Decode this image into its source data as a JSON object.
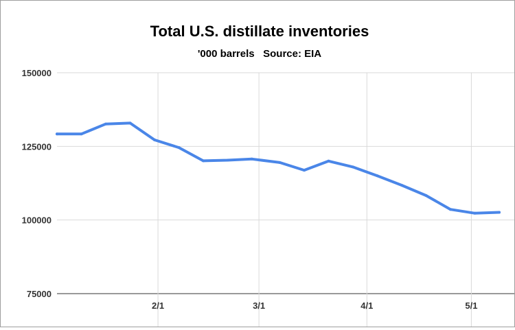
{
  "chart_data": {
    "type": "line",
    "title": "Total U.S. distillate inventories",
    "subtitle": "'000 barrels   Source: EIA",
    "xlabel": "",
    "ylabel": "",
    "ylim": [
      75000,
      150000
    ],
    "y_ticks": [
      150000,
      125000,
      100000,
      75000
    ],
    "y_tick_labels": [
      "150000",
      "125000",
      "100000",
      "75000"
    ],
    "x_ticks": [
      {
        "label": "2/1",
        "x": "2/1"
      },
      {
        "label": "3/1",
        "x": "3/1"
      },
      {
        "label": "4/1",
        "x": "4/1"
      },
      {
        "label": "5/1",
        "x": "5/1"
      }
    ],
    "xlim": [
      "1/3",
      "5/9"
    ],
    "grid": true,
    "colors": {
      "line": "#4a86e8",
      "grid": "#d9d9d9"
    },
    "series": [
      {
        "x": [
          "1/3",
          "1/10",
          "1/17",
          "1/24",
          "1/31",
          "2/7",
          "2/14",
          "2/21",
          "2/28",
          "3/7",
          "3/14",
          "3/21",
          "3/28",
          "4/4",
          "4/11",
          "4/18",
          "4/25",
          "5/2",
          "5/9"
        ],
        "values": [
          129200,
          129200,
          132600,
          132900,
          127200,
          124600,
          120100,
          120300,
          120700,
          119500,
          116900,
          120000,
          118000,
          115000,
          111800,
          108300,
          103600,
          102300,
          102600
        ]
      }
    ]
  }
}
